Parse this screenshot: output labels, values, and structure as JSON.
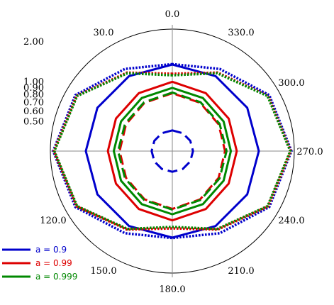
{
  "chart_data": {
    "type": "polar-line",
    "title": "",
    "angular": {
      "zero_direction": "top",
      "direction": "counterclockwise",
      "tick_labels": [
        "0.0",
        "30.0",
        "120.0",
        "150.0",
        "180.0",
        "210.0",
        "240.0",
        "270.0",
        "300.0",
        "330.0"
      ]
    },
    "radial": {
      "scale": "log",
      "range": [
        0.3,
        2.5
      ],
      "tick_labels": [
        "0.50",
        "0.60",
        "0.70",
        "0.80",
        "0.90",
        "1.00",
        "2.00"
      ],
      "tick_values": [
        0.5,
        0.6,
        0.7,
        0.8,
        0.9,
        1.0,
        2.0
      ]
    },
    "legend": {
      "placement": "bottom-left"
    },
    "series": [
      {
        "name": "a = 0.9",
        "color": "#0000cc",
        "curves": [
          {
            "style": "solid",
            "theta": [
              0,
              30,
              60,
              90,
              120,
              150,
              180
            ],
            "r": [
              1.35,
              1.35,
              1.35,
              1.35,
              1.35,
              1.35,
              1.35
            ]
          },
          {
            "style": "dashed",
            "theta": [
              0,
              30,
              60,
              90,
              120,
              150,
              180
            ],
            "r": [
              0.43,
              0.43,
              0.43,
              0.43,
              0.43,
              0.43,
              0.43
            ]
          },
          {
            "style": "dotted",
            "theta": [
              0,
              30,
              60,
              90,
              120,
              150,
              180
            ],
            "r": [
              1.36,
              1.56,
              2.1,
              2.38,
              2.1,
              1.56,
              1.36
            ]
          }
        ]
      },
      {
        "name": "a = 0.99",
        "color": "#dd0000",
        "curves": [
          {
            "style": "solid",
            "theta": [
              0,
              30,
              60,
              90,
              120,
              150,
              180
            ],
            "r": [
              1.0,
              0.96,
              0.93,
              0.92,
              0.93,
              0.96,
              1.0
            ]
          },
          {
            "style": "dashed",
            "theta": [
              0,
              30,
              60,
              90,
              120,
              150,
              180
            ],
            "r": [
              0.82,
              0.79,
              0.76,
              0.75,
              0.76,
              0.79,
              0.82
            ]
          },
          {
            "style": "dotted",
            "theta": [
              0,
              30,
              60,
              90,
              120,
              150,
              180
            ],
            "r": [
              1.15,
              1.45,
              2.05,
              2.35,
              2.05,
              1.45,
              1.15
            ]
          }
        ]
      },
      {
        "name": "a = 0.999",
        "color": "#008800",
        "curves": [
          {
            "style": "solid",
            "theta": [
              0,
              30,
              60,
              90,
              120,
              150,
              180
            ],
            "r": [
              0.9,
              0.87,
              0.84,
              0.83,
              0.84,
              0.87,
              0.9
            ]
          },
          {
            "style": "dashed",
            "theta": [
              0,
              30,
              60,
              90,
              120,
              150,
              180
            ],
            "r": [
              0.83,
              0.8,
              0.775,
              0.77,
              0.775,
              0.8,
              0.83
            ]
          },
          {
            "style": "dotted",
            "theta": [
              0,
              30,
              60,
              90,
              120,
              150,
              180
            ],
            "r": [
              1.12,
              1.43,
              2.03,
              2.33,
              2.03,
              1.43,
              1.12
            ]
          }
        ]
      }
    ]
  }
}
